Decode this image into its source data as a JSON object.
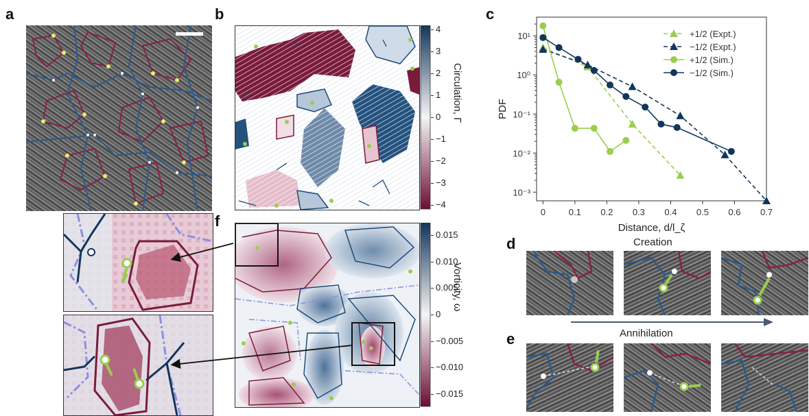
{
  "panel_labels": {
    "a": "a",
    "b": "b",
    "c": "c",
    "d": "d",
    "e": "e",
    "f": "f"
  },
  "colorbar_b": {
    "label": "Circulation, Γ",
    "ticks": [
      "4",
      "3",
      "2",
      "1",
      "0",
      "−1",
      "−2",
      "−3",
      "−4"
    ]
  },
  "colorbar_f": {
    "label": "Vorticity, ω",
    "ticks": [
      "0.015",
      "0.010",
      "0.005",
      "0",
      "−0.005",
      "−0.010",
      "−0.015"
    ]
  },
  "captions": {
    "creation": "Creation",
    "annihilation": "Annihilation"
  },
  "colors": {
    "red": "#7a1b3b",
    "blue": "#1b4a78",
    "green": "#9acd4f",
    "yellow": "#e6f06a"
  },
  "chart_data": {
    "type": "line",
    "xlabel": "Distance, d/l_ζ",
    "ylabel": "PDF",
    "xlim": [
      -0.02,
      0.7
    ],
    "ylim": [
      0.0006,
      30
    ],
    "yscale": "log",
    "xticks": [
      "0",
      "0.1",
      "0.2",
      "0.3",
      "0.4",
      "0.5",
      "0.6",
      "0.7"
    ],
    "yticks": [
      "10¹",
      "10⁰",
      "10⁻¹",
      "10⁻²",
      "10⁻³"
    ],
    "legend_position": "top-right",
    "series": [
      {
        "name": "+1/2 (Expt.)",
        "color": "#9acd4f",
        "dash": true,
        "marker": "triangle",
        "x": [
          0,
          0.14,
          0.28,
          0.43
        ],
        "y": [
          5,
          1.6,
          0.055,
          0.0027
        ]
      },
      {
        "name": "−1/2 (Expt.)",
        "color": "#12355b",
        "dash": true,
        "marker": "triangle",
        "x": [
          0,
          0.14,
          0.28,
          0.43,
          0.57,
          0.7
        ],
        "y": [
          4.5,
          1.8,
          0.5,
          0.09,
          0.009,
          0.0006
        ]
      },
      {
        "name": "+1/2 (Sim.)",
        "color": "#9acd4f",
        "dash": false,
        "marker": "circle",
        "x": [
          0,
          0.05,
          0.1,
          0.16,
          0.21,
          0.26
        ],
        "y": [
          18,
          0.65,
          0.043,
          0.043,
          0.011,
          0.021
        ]
      },
      {
        "name": "−1/2 (Sim.)",
        "color": "#12355b",
        "dash": false,
        "marker": "circle",
        "x": [
          0,
          0.05,
          0.11,
          0.16,
          0.21,
          0.26,
          0.32,
          0.37,
          0.42,
          0.59
        ],
        "y": [
          9,
          5,
          2.5,
          1.3,
          0.55,
          0.28,
          0.15,
          0.055,
          0.045,
          0.011
        ]
      }
    ]
  }
}
